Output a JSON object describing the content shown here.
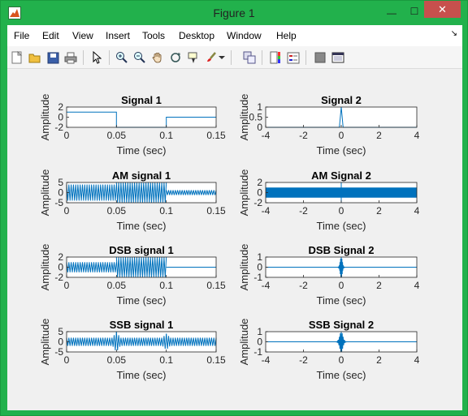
{
  "window": {
    "title": "Figure 1",
    "controls": {
      "minimize": "—",
      "maximize": "☐",
      "close": "✕"
    }
  },
  "menu": {
    "items": [
      "File",
      "Edit",
      "View",
      "Insert",
      "Tools",
      "Desktop",
      "Window",
      "Help"
    ],
    "dock_glyph": "↘"
  },
  "toolbar": {
    "tools": [
      {
        "name": "new-figure-icon"
      },
      {
        "name": "open-file-icon"
      },
      {
        "name": "save-icon"
      },
      {
        "name": "print-icon"
      },
      {
        "name": "edit-plot-arrow-icon"
      },
      {
        "name": "zoom-in-icon"
      },
      {
        "name": "zoom-out-icon"
      },
      {
        "name": "pan-hand-icon"
      },
      {
        "name": "rotate-3d-icon"
      },
      {
        "name": "data-cursor-icon"
      },
      {
        "name": "brush-icon"
      },
      {
        "name": "brush-dropdown-icon"
      },
      {
        "name": "link-plot-icon"
      },
      {
        "name": "colorbar-icon"
      },
      {
        "name": "legend-icon"
      },
      {
        "name": "hide-plot-tools-icon"
      },
      {
        "name": "show-plot-tools-icon"
      }
    ]
  },
  "colors": {
    "line": "#0072bd",
    "axes_bg": "#ffffff",
    "figure_bg": "#f0f0f0",
    "title_bar": "#22b14c",
    "close": "#c7504d"
  },
  "chart_data": [
    {
      "type": "line",
      "title": "Signal 1",
      "xlabel": "Time (sec)",
      "ylabel": "Amplitude",
      "xlim": [
        0,
        0.15
      ],
      "ylim": [
        -2,
        2
      ],
      "xticks": [
        "0",
        "0.05",
        "0.1",
        "0.15"
      ],
      "yticks": [
        "-2",
        "0",
        "2"
      ],
      "series": [
        {
          "x": [
            0,
            0.05,
            0.05,
            0.1,
            0.1,
            0.15
          ],
          "y": [
            1,
            1,
            -2,
            -2,
            0,
            0
          ]
        }
      ]
    },
    {
      "type": "line",
      "title": "Signal 2",
      "xlabel": "Time (sec)",
      "ylabel": "Amplitude",
      "xlim": [
        -4,
        4
      ],
      "ylim": [
        0,
        1
      ],
      "xticks": [
        "-4",
        "-2",
        "0",
        "2",
        "4"
      ],
      "yticks": [
        "0",
        "0.5",
        "1"
      ],
      "series": [
        {
          "x": [
            -4,
            -0.1,
            0,
            0.1,
            4
          ],
          "y": [
            0,
            0,
            1,
            0,
            0
          ]
        }
      ]
    },
    {
      "type": "line",
      "title": "AM signal 1",
      "xlabel": "Time (sec)",
      "ylabel": "Amplitude",
      "xlim": [
        0,
        0.15
      ],
      "ylim": [
        -5,
        5
      ],
      "xticks": [
        "0",
        "0.05",
        "0.1",
        "0.15"
      ],
      "yticks": [
        "-5",
        "0",
        "5"
      ],
      "series": [
        {
          "segments": [
            {
              "x": [
                0,
                0.05
              ],
              "amp": 4,
              "offset": 0,
              "cycles": 22
            },
            {
              "x": [
                0.05,
                0.1
              ],
              "amp": 5,
              "offset": 0,
              "cycles": 22
            },
            {
              "x": [
                0.1,
                0.15
              ],
              "amp": 1.2,
              "offset": 0,
              "cycles": 22
            }
          ]
        }
      ]
    },
    {
      "type": "line",
      "title": "AM Signal 2",
      "xlabel": "Time (sec)",
      "ylabel": "Amplitude",
      "xlim": [
        -4,
        4
      ],
      "ylim": [
        -2,
        2
      ],
      "xticks": [
        "-4",
        "-2",
        "0",
        "2",
        "4"
      ],
      "yticks": [
        "-2",
        "0",
        "2"
      ],
      "series": [
        {
          "band": {
            "x": [
              -4,
              4
            ],
            "ymin": -1,
            "ymax": 1
          },
          "spike": {
            "x": 0,
            "ymin": -2,
            "ymax": 2
          }
        }
      ]
    },
    {
      "type": "line",
      "title": "DSB signal 1",
      "xlabel": "Time (sec)",
      "ylabel": "Amplitude",
      "xlim": [
        0,
        0.15
      ],
      "ylim": [
        -2,
        2
      ],
      "xticks": [
        "0",
        "0.05",
        "0.1",
        "0.15"
      ],
      "yticks": [
        "-2",
        "0",
        "2"
      ],
      "series": [
        {
          "segments": [
            {
              "x": [
                0,
                0.05
              ],
              "amp": 1,
              "offset": 0,
              "cycles": 22
            },
            {
              "x": [
                0.05,
                0.1
              ],
              "amp": 2,
              "offset": 0,
              "cycles": 22
            },
            {
              "x": [
                0.1,
                0.15
              ],
              "amp": 0,
              "offset": 0,
              "cycles": 0
            }
          ]
        }
      ]
    },
    {
      "type": "line",
      "title": "DSB Signal 2",
      "xlabel": "Time (sec)",
      "ylabel": "Amplitude",
      "xlim": [
        -4,
        4
      ],
      "ylim": [
        -1,
        1
      ],
      "xticks": [
        "-4",
        "-2",
        "0",
        "2",
        "4"
      ],
      "yticks": [
        "-1",
        "0",
        "1"
      ],
      "series": [
        {
          "burst": {
            "x": 0,
            "amp": 1,
            "halfwidth": 0.2
          }
        }
      ]
    },
    {
      "type": "line",
      "title": "SSB signal 1",
      "xlabel": "Time (sec)",
      "ylabel": "Amplitude",
      "xlim": [
        0,
        0.15
      ],
      "ylim": [
        -5,
        5
      ],
      "xticks": [
        "0",
        "0.05",
        "0.1",
        "0.15"
      ],
      "yticks": [
        "-5",
        "0",
        "5"
      ],
      "series": [
        {
          "segments": [
            {
              "x": [
                0,
                0.05
              ],
              "amp": 2,
              "offset": 0,
              "cycles": 22
            },
            {
              "x": [
                0.05,
                0.1
              ],
              "amp": 2,
              "offset": 0,
              "cycles": 22
            },
            {
              "x": [
                0.1,
                0.15
              ],
              "amp": 2,
              "offset": 0,
              "cycles": 22
            }
          ],
          "peaks": [
            {
              "x": 0.05,
              "amp": 5
            },
            {
              "x": 0.1,
              "amp": 4
            }
          ]
        }
      ]
    },
    {
      "type": "line",
      "title": "SSB Signal 2",
      "xlabel": "Time (sec)",
      "ylabel": "Amplitude",
      "xlim": [
        -4,
        4
      ],
      "ylim": [
        -1,
        1
      ],
      "xticks": [
        "-4",
        "-2",
        "0",
        "2",
        "4"
      ],
      "yticks": [
        "-1",
        "0",
        "1"
      ],
      "series": [
        {
          "burst": {
            "x": 0,
            "amp": 1,
            "halfwidth": 0.3
          }
        }
      ]
    }
  ]
}
